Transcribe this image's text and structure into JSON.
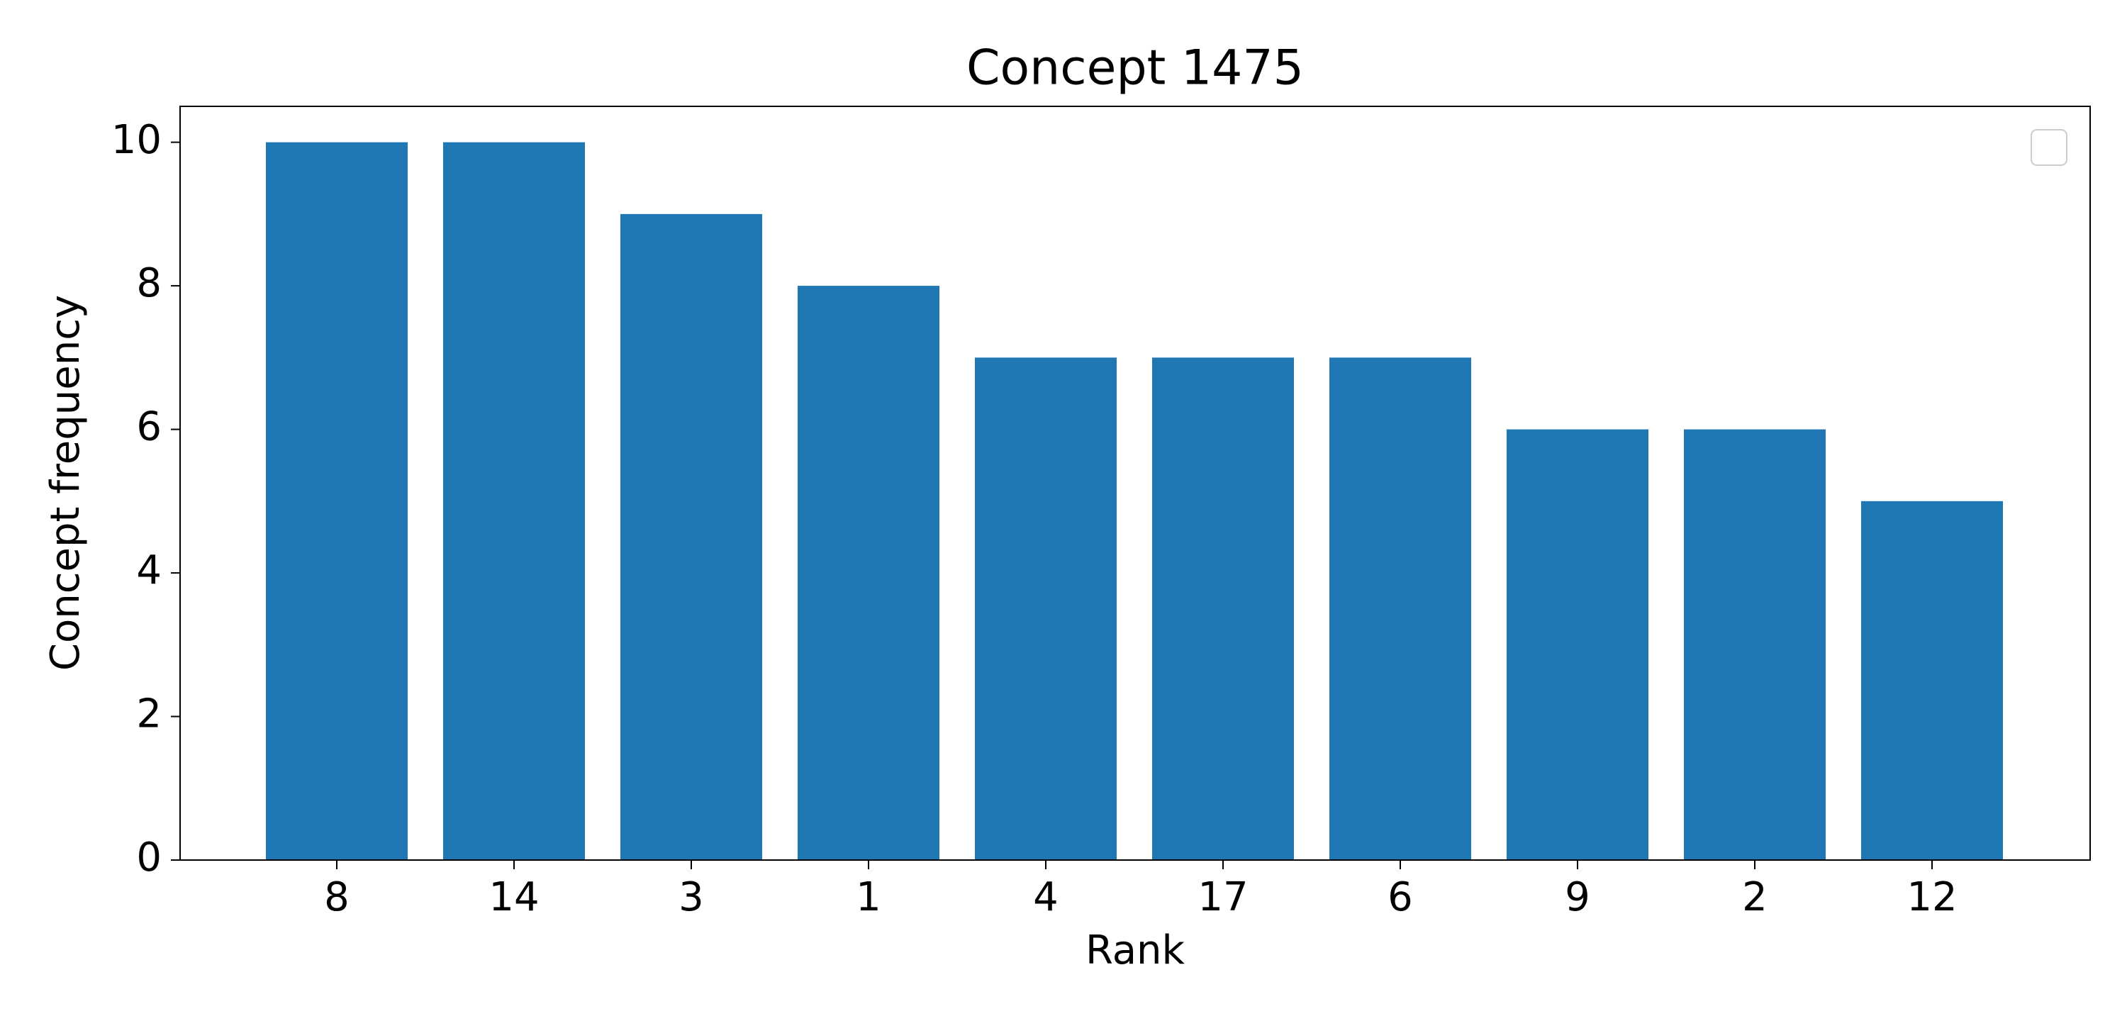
{
  "chart_data": {
    "type": "bar",
    "title": "Concept 1475",
    "x_label": "Rank",
    "y_label": "Concept frequency",
    "categories": [
      "8",
      "14",
      "3",
      "1",
      "4",
      "17",
      "6",
      "9",
      "2",
      "12"
    ],
    "values": [
      10,
      10,
      9,
      8,
      7,
      7,
      7,
      6,
      6,
      5
    ],
    "color": "#1f77b4",
    "ylim": [
      0,
      10.5
    ],
    "yticks": [
      0,
      2,
      4,
      6,
      8,
      10
    ],
    "grid": false,
    "legend": "upper right"
  }
}
